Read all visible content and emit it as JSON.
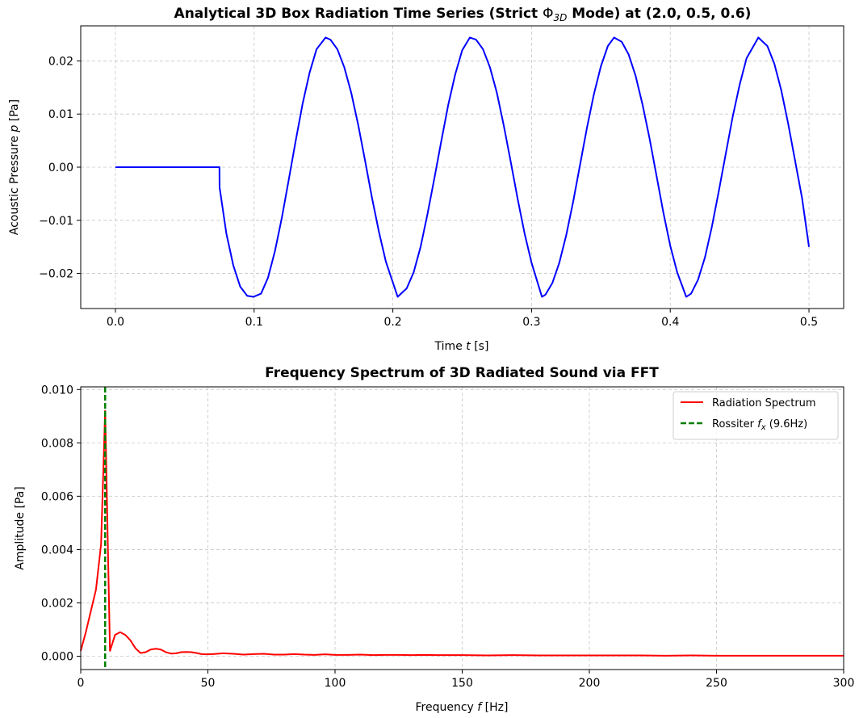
{
  "colors": {
    "time_series": "#0000ff",
    "spectrum": "#ff0000",
    "rossiter_line": "#008000"
  },
  "chart_data": [
    {
      "type": "line",
      "title_prefix": "Analytical 3D Box Radiation Time Series (Strict ",
      "title_symbol": "Φ",
      "title_sub": "3D",
      "title_suffix": " Mode) at (2.0, 0.5, 0.6)",
      "xlabel_text": "Time ",
      "xlabel_var": "t",
      "xlabel_unit": " [s]",
      "ylabel_text": "Acoustic Pressure ",
      "ylabel_var": "p",
      "ylabel_unit": " [Pa]",
      "xlim": [
        -0.025,
        0.525
      ],
      "ylim": [
        -0.0266,
        0.0266
      ],
      "xticks": [
        0.0,
        0.1,
        0.2,
        0.3,
        0.4,
        0.5
      ],
      "xtick_labels": [
        "0.0",
        "0.1",
        "0.2",
        "0.3",
        "0.4",
        "0.5"
      ],
      "yticks": [
        -0.02,
        -0.01,
        0.0,
        0.01,
        0.02
      ],
      "ytick_labels": [
        "−0.02",
        "−0.01",
        "0.00",
        "0.01",
        "0.02"
      ],
      "grid": true,
      "series": [
        {
          "x": [
            0.0,
            0.075,
            0.0751,
            0.08,
            0.085,
            0.09,
            0.095,
            0.0995,
            0.105,
            0.11,
            0.115,
            0.12,
            0.125,
            0.13,
            0.135,
            0.14,
            0.145,
            0.1515,
            0.155,
            0.16,
            0.165,
            0.17,
            0.175,
            0.18,
            0.185,
            0.19,
            0.195,
            0.2035,
            0.21,
            0.215,
            0.22,
            0.225,
            0.23,
            0.235,
            0.24,
            0.245,
            0.25,
            0.2555,
            0.26,
            0.265,
            0.27,
            0.275,
            0.28,
            0.285,
            0.29,
            0.295,
            0.3,
            0.3075,
            0.31,
            0.315,
            0.32,
            0.325,
            0.33,
            0.335,
            0.34,
            0.345,
            0.35,
            0.355,
            0.3595,
            0.365,
            0.37,
            0.375,
            0.38,
            0.385,
            0.39,
            0.395,
            0.4,
            0.405,
            0.4115,
            0.415,
            0.42,
            0.425,
            0.43,
            0.435,
            0.44,
            0.445,
            0.45,
            0.455,
            0.4635,
            0.47,
            0.475,
            0.48,
            0.485,
            0.49,
            0.495,
            0.5
          ],
          "y": [
            0.0,
            0.0,
            -0.0038,
            -0.0125,
            -0.0185,
            -0.0225,
            -0.0242,
            -0.0244,
            -0.0238,
            -0.0208,
            -0.0158,
            -0.0095,
            -0.0023,
            0.005,
            0.012,
            0.0178,
            0.0222,
            0.0244,
            0.024,
            0.0222,
            0.0188,
            0.014,
            0.008,
            0.0012,
            -0.0058,
            -0.0122,
            -0.0178,
            -0.0244,
            -0.0228,
            -0.0198,
            -0.015,
            -0.0088,
            -0.002,
            0.005,
            0.0118,
            0.0175,
            0.022,
            0.0244,
            0.024,
            0.0222,
            0.0188,
            0.014,
            0.0078,
            0.001,
            -0.006,
            -0.0125,
            -0.018,
            -0.0244,
            -0.024,
            -0.0218,
            -0.018,
            -0.0128,
            -0.0065,
            0.0005,
            0.0075,
            0.0138,
            0.019,
            0.0228,
            0.0244,
            0.0236,
            0.0212,
            0.0172,
            0.0118,
            0.0055,
            -0.0015,
            -0.0085,
            -0.0148,
            -0.0198,
            -0.0244,
            -0.0238,
            -0.0212,
            -0.017,
            -0.0112,
            -0.0045,
            0.0025,
            0.0095,
            0.0155,
            0.0205,
            0.0244,
            0.0228,
            0.0195,
            0.0145,
            0.0082,
            0.0012,
            -0.0058,
            -0.015
          ]
        }
      ]
    },
    {
      "type": "line",
      "title": "Frequency Spectrum of 3D Radiated Sound via FFT",
      "xlabel_text": "Frequency ",
      "xlabel_var": "f",
      "xlabel_unit": " [Hz]",
      "ylabel": "Amplitude [Pa]",
      "xlim": [
        0,
        300
      ],
      "ylim": [
        -0.0005,
        0.0101
      ],
      "xticks": [
        0,
        50,
        100,
        150,
        200,
        250,
        300
      ],
      "xtick_labels": [
        "0",
        "50",
        "100",
        "150",
        "200",
        "250",
        "300"
      ],
      "yticks": [
        0.0,
        0.002,
        0.004,
        0.006,
        0.008,
        0.01
      ],
      "ytick_labels": [
        "0.000",
        "0.002",
        "0.004",
        "0.006",
        "0.008",
        "0.010"
      ],
      "grid": true,
      "legend_position": "upper right",
      "legend_entry1": "Radiation Spectrum",
      "legend_entry2_prefix": "Rossiter ",
      "legend_entry2_var": "f",
      "legend_entry2_sub": "x",
      "legend_entry2_suffix": " (9.6Hz)",
      "rossiter_fx": 9.6,
      "series": [
        {
          "x": [
            0,
            2,
            4,
            6,
            8,
            9.6,
            11.5,
            13.5,
            15.5,
            17.5,
            19.5,
            21.5,
            23.5,
            25.5,
            27.5,
            29.5,
            31.5,
            33.5,
            35.5,
            37.5,
            39.5,
            41.5,
            43.5,
            45.5,
            47.5,
            49.5,
            52,
            56,
            60,
            64,
            68,
            72,
            76,
            80,
            84,
            88,
            92,
            96,
            100,
            105,
            110,
            115,
            120,
            125,
            130,
            135,
            140,
            150,
            160,
            170,
            180,
            190,
            200,
            210,
            220,
            230,
            240,
            250,
            260,
            270,
            280,
            290,
            300
          ],
          "y": [
            0.0002,
            0.0009,
            0.0017,
            0.0025,
            0.0042,
            0.0092,
            0.0002,
            0.0008,
            0.0009,
            0.0008,
            0.0006,
            0.0003,
            0.00012,
            0.00015,
            0.00025,
            0.00028,
            0.00025,
            0.00015,
            0.0001,
            0.00011,
            0.00015,
            0.00016,
            0.00015,
            0.00012,
            8e-05,
            7e-05,
            8e-05,
            0.00011,
            9e-05,
            6e-05,
            8e-05,
            9e-05,
            6e-05,
            6e-05,
            8e-05,
            6e-05,
            5e-05,
            7e-05,
            5e-05,
            5e-05,
            6e-05,
            4e-05,
            5e-05,
            5e-05,
            4e-05,
            5e-05,
            4e-05,
            4e-05,
            3e-05,
            4e-05,
            3e-05,
            3e-05,
            3e-05,
            3e-05,
            3e-05,
            2e-05,
            3e-05,
            2e-05,
            2e-05,
            2e-05,
            2e-05,
            2e-05,
            2e-05
          ]
        }
      ]
    }
  ]
}
